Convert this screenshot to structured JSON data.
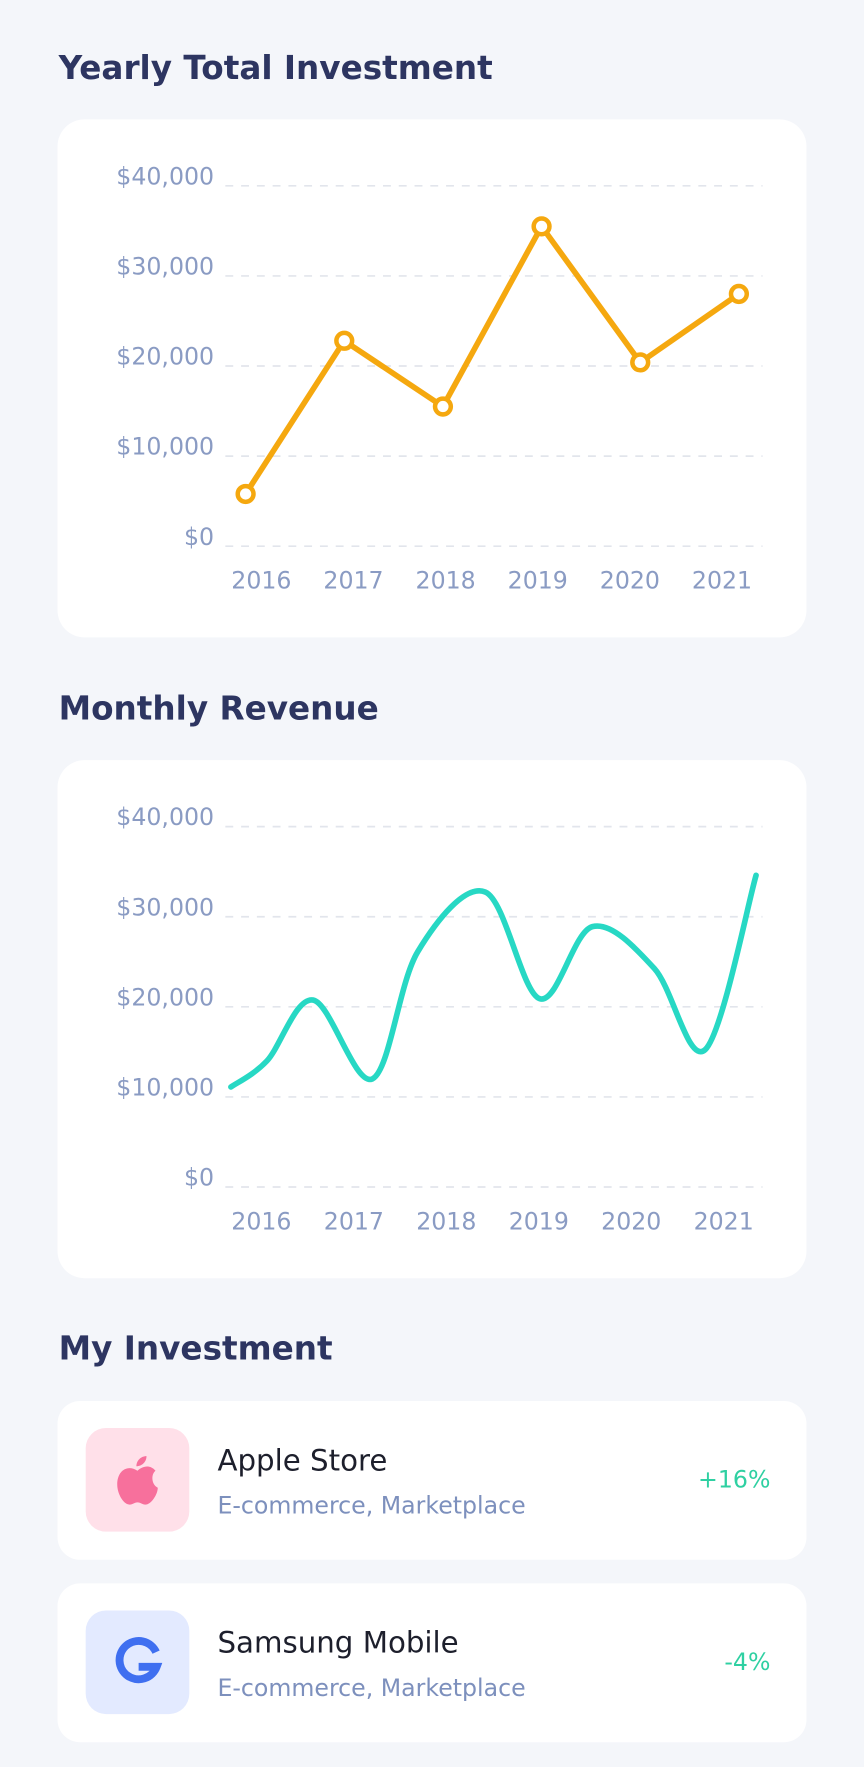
{
  "chart_data": [
    {
      "type": "line",
      "title": "Yearly Total Investment",
      "color": "#f5a80f",
      "grid": true,
      "markers": true,
      "categories": [
        "2016",
        "2017",
        "2018",
        "2019",
        "2020",
        "2021"
      ],
      "values": [
        5800,
        22800,
        15500,
        35500,
        20400,
        28000
      ],
      "ylim": [
        0,
        40000
      ],
      "yticks": [
        {
          "value": 0,
          "label": "$0"
        },
        {
          "value": 10000,
          "label": "$10,000"
        },
        {
          "value": 20000,
          "label": "$20,000"
        },
        {
          "value": 30000,
          "label": "$30,000"
        },
        {
          "value": 40000,
          "label": "$40,000"
        }
      ]
    },
    {
      "type": "smooth-line",
      "title": "Monthly Revenue",
      "color": "#27d8c4",
      "grid": true,
      "x": [
        2015.67,
        2016.06,
        2016.56,
        2017.2,
        2017.69,
        2018.42,
        2019.01,
        2019.58,
        2020.25,
        2020.8,
        2021.35
      ],
      "values": [
        11100,
        14000,
        20750,
        12000,
        26100,
        32750,
        20900,
        28900,
        24250,
        15250,
        34600
      ],
      "xlim": [
        2015.61,
        2021.42
      ],
      "xticks": [
        2016,
        2017,
        2018,
        2019,
        2020,
        2021
      ],
      "ylim": [
        0,
        40000
      ],
      "yticks": [
        {
          "value": 0,
          "label": "$0"
        },
        {
          "value": 10000,
          "label": "$10,000"
        },
        {
          "value": 20000,
          "label": "$20,000"
        },
        {
          "value": 30000,
          "label": "$30,000"
        },
        {
          "value": 40000,
          "label": "$40,000"
        }
      ]
    }
  ],
  "investments": {
    "title": "My Investment",
    "items": [
      {
        "name": "Apple Store",
        "category": "E-commerce, Marketplace",
        "change": "+16%"
      },
      {
        "name": "Samsung Mobile",
        "category": "E-commerce, Marketplace",
        "change": "-4%"
      }
    ]
  }
}
